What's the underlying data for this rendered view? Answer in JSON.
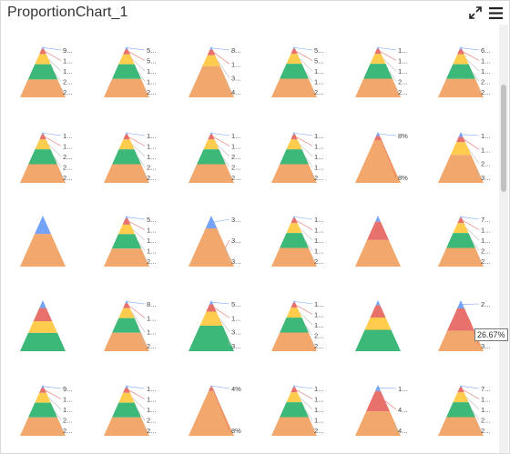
{
  "header": {
    "title": "ProportionChart_1"
  },
  "icons": {
    "expand": "expand-arrows-icon",
    "menu": "hamburger-menu-icon"
  },
  "tooltip": {
    "text": "26.67%"
  },
  "colors": {
    "blue": "#74a2f7",
    "red": "#e8716c",
    "yellow": "#ffcc4d",
    "green": "#3cb878",
    "orange": "#f2a86c"
  },
  "chart_data": {
    "type": "pyramid",
    "layer_order_top_to_bottom": [
      "blue",
      "red",
      "yellow",
      "green",
      "orange"
    ],
    "pyramids": [
      {
        "layers": [
          4,
          8,
          16,
          24,
          28
        ],
        "labels": [
          "9...",
          "1...",
          "1...",
          "2...",
          "2..."
        ]
      },
      {
        "layers": [
          5,
          8,
          16,
          24,
          30
        ],
        "labels": [
          "5...",
          "5...",
          "1...",
          "1...",
          "2..."
        ]
      },
      {
        "layers": [
          5,
          8,
          16,
          0,
          46
        ],
        "labels": [
          "8...",
          "1...",
          "3...",
          "4..."
        ]
      },
      {
        "layers": [
          4,
          8,
          16,
          24,
          30
        ],
        "labels": [
          "5...",
          "5...",
          "1...",
          "1...",
          "2..."
        ]
      },
      {
        "layers": [
          4,
          8,
          16,
          24,
          30
        ],
        "labels": [
          "1...",
          "1...",
          "1...",
          "2...",
          "2..."
        ]
      },
      {
        "layers": [
          5,
          8,
          16,
          24,
          30
        ],
        "labels": [
          "6...",
          "1...",
          "1...",
          "2...",
          "2..."
        ]
      },
      {
        "layers": [
          4,
          8,
          16,
          24,
          30
        ],
        "labels": [
          "1...",
          "1...",
          "2...",
          "2...",
          "2..."
        ]
      },
      {
        "layers": [
          4,
          8,
          16,
          24,
          30
        ],
        "labels": [
          "1...",
          "1...",
          "1...",
          "2...",
          "2..."
        ]
      },
      {
        "layers": [
          4,
          8,
          16,
          24,
          30
        ],
        "labels": [
          "1...",
          "1...",
          "2...",
          "2...",
          "2..."
        ]
      },
      {
        "layers": [
          4,
          8,
          16,
          24,
          30
        ],
        "labels": [
          "1...",
          "1...",
          "1...",
          "1...",
          "2..."
        ]
      },
      {
        "layers": [
          8,
          8,
          0,
          0,
          84
        ],
        "labels": [
          "8%",
          "8%"
        ]
      },
      {
        "layers": [
          8,
          8,
          20,
          0,
          44
        ],
        "labels": [
          "1...",
          "1...",
          "2...",
          "3..."
        ]
      },
      {
        "layers": [
          36,
          0,
          0,
          0,
          64
        ],
        "labels": []
      },
      {
        "layers": [
          5,
          10,
          16,
          24,
          30
        ],
        "labels": [
          "5...",
          "1...",
          "1...",
          "1...",
          "2..."
        ]
      },
      {
        "layers": [
          25,
          0,
          0,
          0,
          75
        ],
        "labels": [
          "3...",
          "3...",
          "3..."
        ]
      },
      {
        "layers": [
          4,
          8,
          16,
          24,
          30
        ],
        "labels": [
          "1...",
          "1...",
          "1...",
          "1...",
          "2..."
        ]
      },
      {
        "layers": [
          12,
          36,
          0,
          0,
          52
        ],
        "labels": []
      },
      {
        "layers": [
          4,
          8,
          16,
          24,
          30
        ],
        "labels": [
          "7...",
          "1...",
          "1...",
          "2...",
          "2..."
        ]
      },
      {
        "layers": [
          12,
          20,
          18,
          28,
          0
        ],
        "labels": []
      },
      {
        "layers": [
          5,
          8,
          16,
          24,
          30
        ],
        "labels": [
          "8...",
          "1...",
          "1...",
          "2..."
        ]
      },
      {
        "layers": [
          6,
          10,
          20,
          36,
          0
        ],
        "labels": [
          "5...",
          "1...",
          "3...",
          "3..."
        ]
      },
      {
        "layers": [
          4,
          8,
          16,
          24,
          30
        ],
        "labels": [
          "1...",
          "1...",
          "1...",
          "2...",
          "2..."
        ]
      },
      {
        "layers": [
          10,
          24,
          24,
          42,
          0
        ],
        "labels": []
      },
      {
        "layers": [
          16,
          44,
          0,
          0,
          40
        ],
        "labels": [
          "2...",
          "3..."
        ]
      },
      {
        "layers": [
          5,
          8,
          16,
          24,
          30
        ],
        "labels": [
          "9...",
          "1...",
          "1...",
          "2...",
          "2..."
        ]
      },
      {
        "layers": [
          5,
          8,
          16,
          24,
          30
        ],
        "labels": [
          "1...",
          "1...",
          "1...",
          "2...",
          "2..."
        ]
      },
      {
        "layers": [
          4,
          8,
          0,
          0,
          88
        ],
        "labels": [
          "4%",
          "8%"
        ]
      },
      {
        "layers": [
          4,
          8,
          16,
          24,
          30
        ],
        "labels": [
          "1...",
          "1...",
          "1...",
          "1...",
          "2..."
        ]
      },
      {
        "layers": [
          12,
          40,
          0,
          0,
          48
        ],
        "labels": [
          "1...",
          "4...",
          "4..."
        ]
      },
      {
        "layers": [
          4,
          8,
          16,
          24,
          30
        ],
        "labels": [
          "7...",
          "1...",
          "1...",
          "2...",
          "2..."
        ]
      }
    ]
  }
}
